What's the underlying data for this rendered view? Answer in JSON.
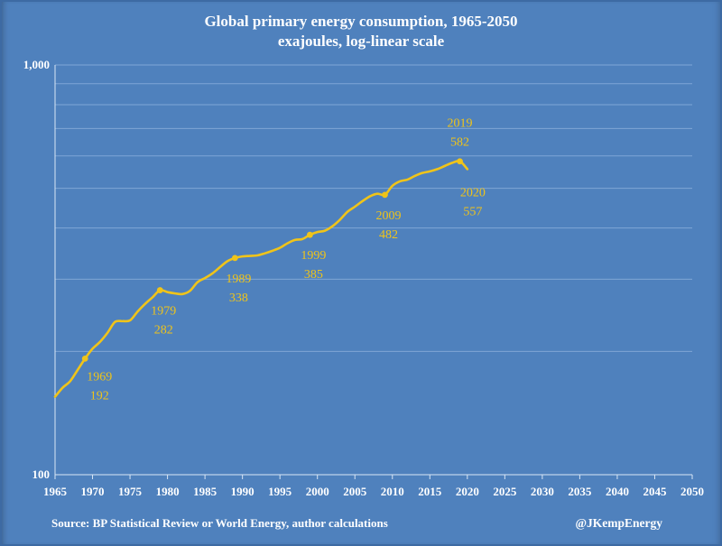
{
  "chart_data": {
    "type": "line",
    "title": "Global primary energy consumption, 1965-2050",
    "subtitle": "exajoules, log-linear scale",
    "xlabel": "",
    "ylabel": "",
    "xlim": [
      1965,
      2050
    ],
    "ylim": [
      100,
      1000
    ],
    "yscale": "log",
    "x_ticks": [
      "1965",
      "1970",
      "1975",
      "1980",
      "1985",
      "1990",
      "1995",
      "2000",
      "2005",
      "2010",
      "2015",
      "2020",
      "2025",
      "2030",
      "2035",
      "2040",
      "2045",
      "2050"
    ],
    "y_tick_labels": [
      {
        "value": 1000,
        "label": "1,000"
      },
      {
        "value": 100,
        "label": "100"
      }
    ],
    "y_gridlines": [
      100,
      200,
      300,
      400,
      500,
      600,
      700,
      800,
      900,
      1000
    ],
    "series": [
      {
        "name": "Global primary energy consumption",
        "color": "#f0c419",
        "x": [
          1965,
          1966,
          1967,
          1968,
          1969,
          1970,
          1971,
          1972,
          1973,
          1974,
          1975,
          1976,
          1977,
          1978,
          1979,
          1980,
          1981,
          1982,
          1983,
          1984,
          1985,
          1986,
          1987,
          1988,
          1989,
          1990,
          1991,
          1992,
          1993,
          1994,
          1995,
          1996,
          1997,
          1998,
          1999,
          2000,
          2001,
          2002,
          2003,
          2004,
          2005,
          2006,
          2007,
          2008,
          2009,
          2010,
          2011,
          2012,
          2013,
          2014,
          2015,
          2016,
          2017,
          2018,
          2019,
          2020
        ],
        "values": [
          155,
          163,
          169,
          180,
          192,
          203,
          211,
          222,
          236,
          237,
          238,
          250,
          261,
          271,
          282,
          279,
          277,
          276,
          281,
          295,
          302,
          310,
          321,
          332,
          338,
          341,
          342,
          343,
          347,
          352,
          358,
          367,
          374,
          376,
          385,
          391,
          394,
          404,
          419,
          438,
          451,
          465,
          478,
          485,
          482,
          507,
          520,
          525,
          536,
          545,
          550,
          557,
          567,
          577,
          582,
          557
        ]
      }
    ],
    "annotations": [
      {
        "year": 1969,
        "year_label": "1969",
        "value_label": "192",
        "position": "below-right"
      },
      {
        "year": 1979,
        "year_label": "1979",
        "value_label": "282",
        "position": "below"
      },
      {
        "year": 1989,
        "year_label": "1989",
        "value_label": "338",
        "position": "below"
      },
      {
        "year": 1999,
        "year_label": "1999",
        "value_label": "385",
        "position": "below"
      },
      {
        "year": 2009,
        "year_label": "2009",
        "value_label": "482",
        "position": "below"
      },
      {
        "year": 2019,
        "year_label": "2019",
        "value_label": "582",
        "position": "above"
      },
      {
        "year": 2020,
        "year_label": "2020",
        "value_label": "557",
        "position": "below"
      }
    ],
    "grid": true
  },
  "footer": {
    "source": "Source: BP Statistical Review or World Energy, author calculations",
    "credit": "@JKempEnergy"
  },
  "colors": {
    "background": "#4f81bd",
    "text": "#ffffff",
    "annotation": "#f0c419",
    "grid": "#7fa6d6",
    "axis": "#d9e6f5"
  }
}
